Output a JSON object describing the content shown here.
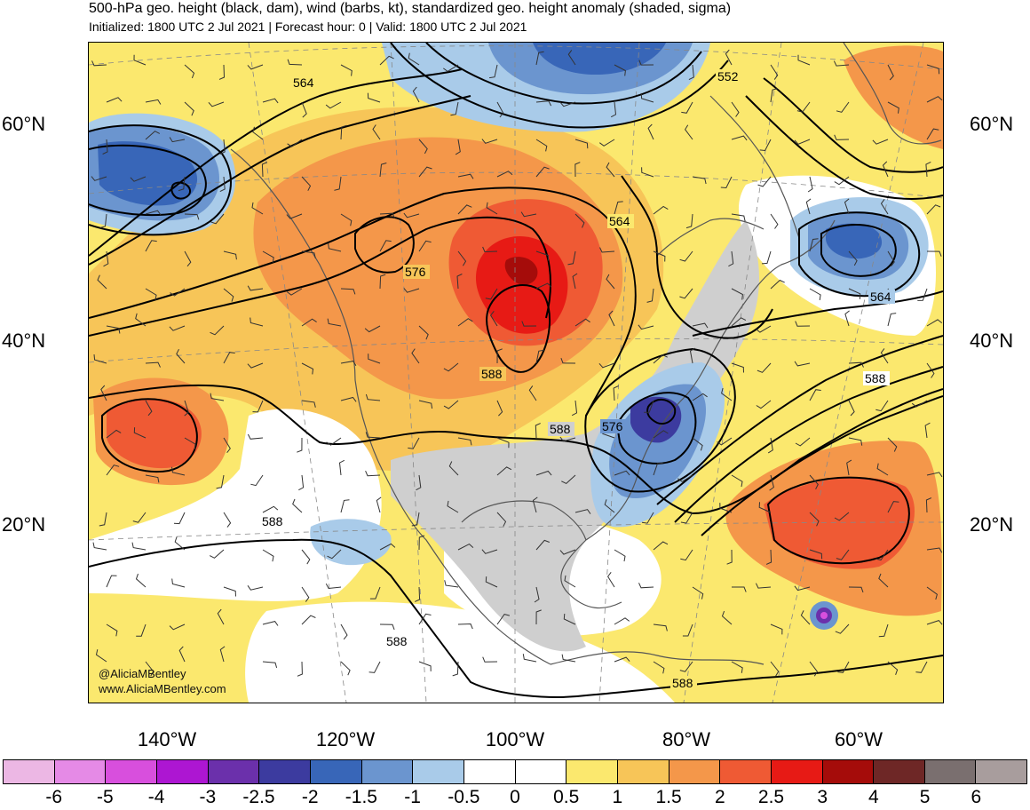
{
  "header": {
    "title": "500-hPa geo. height (black, dam), wind (barbs, kt), standardized geo. height anomaly (shaded, sigma)",
    "subtitle": "Initialized: 1800 UTC 2 Jul 2021 | Forecast hour: 0 | Valid: 1800 UTC 2 Jul 2021"
  },
  "map": {
    "lat_labels_left": [
      "60°N",
      "40°N",
      "20°N"
    ],
    "lat_labels_right": [
      "60°N",
      "40°N",
      "20°N"
    ],
    "lon_labels": [
      "140°W",
      "120°W",
      "100°W",
      "80°W",
      "60°W"
    ],
    "contour_labels": [
      "564",
      "552",
      "564",
      "576",
      "564",
      "588",
      "588",
      "576",
      "588",
      "588",
      "588",
      "588"
    ],
    "credit_handle": "@AliciaMBentley",
    "credit_url": "www.AliciaMBentley.com"
  },
  "colorbar": {
    "colors": [
      "#ecb7e4",
      "#e58ae6",
      "#d84fdd",
      "#ad16d2",
      "#6b30ab",
      "#3c3b9f",
      "#3866b8",
      "#6b95cf",
      "#a9cbe9",
      "#ffffff",
      "#ffffff",
      "#fbe86e",
      "#f7c558",
      "#f4974a",
      "#ef5a34",
      "#e71a15",
      "#a50c0a",
      "#6e2726",
      "#7a6f6f",
      "#a89d9d"
    ],
    "labels": [
      "-6",
      "-5",
      "-4",
      "-3",
      "-2.5",
      "-2",
      "-1.5",
      "-1",
      "-0.5",
      "0",
      "0.5",
      "1",
      "1.5",
      "2",
      "2.5",
      "3",
      "4",
      "5",
      "6"
    ]
  },
  "colors": {
    "background_anomaly": "#fbe86e",
    "land_gray": "#cfcfcf",
    "contour": "#000000",
    "coastline": "#555555"
  }
}
